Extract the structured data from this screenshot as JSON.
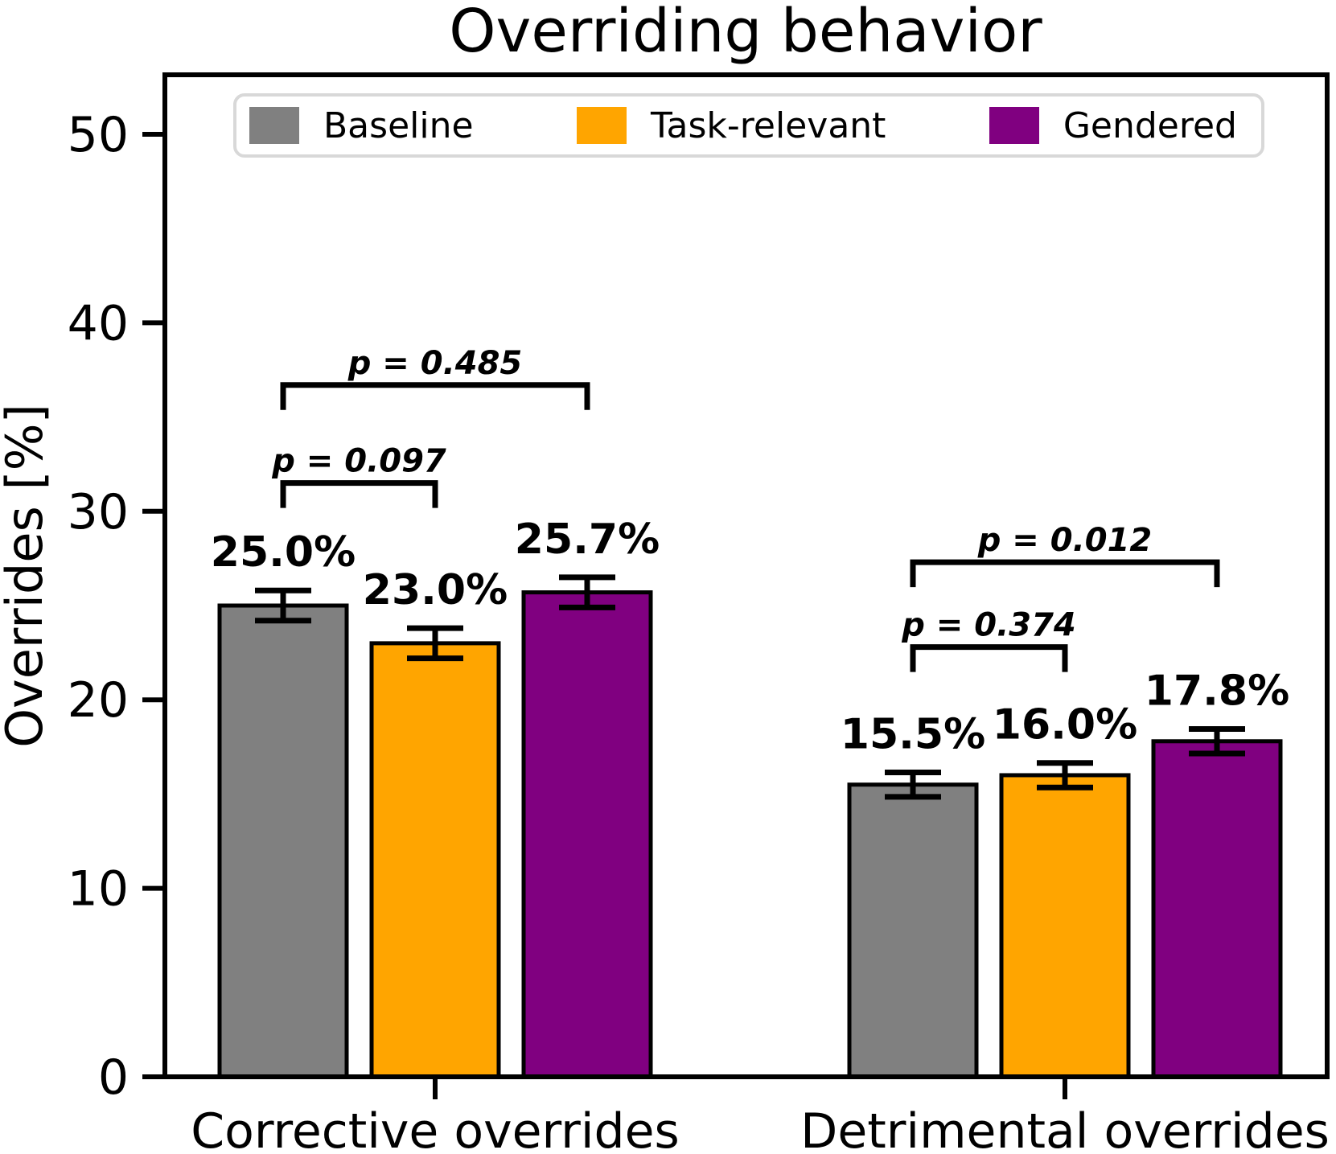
{
  "title": "Overriding behavior",
  "legend": {
    "items": [
      {
        "label": "Baseline",
        "color": "#808080"
      },
      {
        "label": "Task-relevant",
        "color": "#FFA500"
      },
      {
        "label": "Gendered",
        "color": "#800080"
      }
    ]
  },
  "chart_data": {
    "type": "bar",
    "title": "Overriding behavior",
    "xlabel": "",
    "ylabel": "Overrides [%]",
    "ylim": [
      0,
      53
    ],
    "yticks": [
      0,
      10,
      20,
      30,
      40,
      50
    ],
    "grid": false,
    "legend_position": "upper center",
    "categories": [
      "Corrective overrides",
      "Detrimental overrides"
    ],
    "series": [
      {
        "name": "Baseline",
        "color": "#808080",
        "values": [
          25.0,
          15.5
        ],
        "errors": [
          0.8,
          0.65
        ],
        "labels": [
          "25.0%",
          "15.5%"
        ]
      },
      {
        "name": "Task-relevant",
        "color": "#FFA500",
        "values": [
          23.0,
          16.0
        ],
        "errors": [
          0.8,
          0.65
        ],
        "labels": [
          "23.0%",
          "16.0%"
        ]
      },
      {
        "name": "Gendered",
        "color": "#800080",
        "values": [
          25.7,
          17.8
        ],
        "errors": [
          0.8,
          0.65
        ],
        "labels": [
          "25.7%",
          "17.8%"
        ]
      }
    ],
    "significance": [
      {
        "group": 0,
        "from": 0,
        "to": 1,
        "label": "p = 0.097",
        "y": 31.5
      },
      {
        "group": 0,
        "from": 0,
        "to": 2,
        "label": "p = 0.485",
        "y": 36.7
      },
      {
        "group": 1,
        "from": 0,
        "to": 1,
        "label": "p = 0.374",
        "y": 22.8
      },
      {
        "group": 1,
        "from": 0,
        "to": 2,
        "label": "p = 0.012",
        "y": 27.3
      }
    ],
    "bar_edge_color": "#000000",
    "axis_color": "#000000"
  }
}
